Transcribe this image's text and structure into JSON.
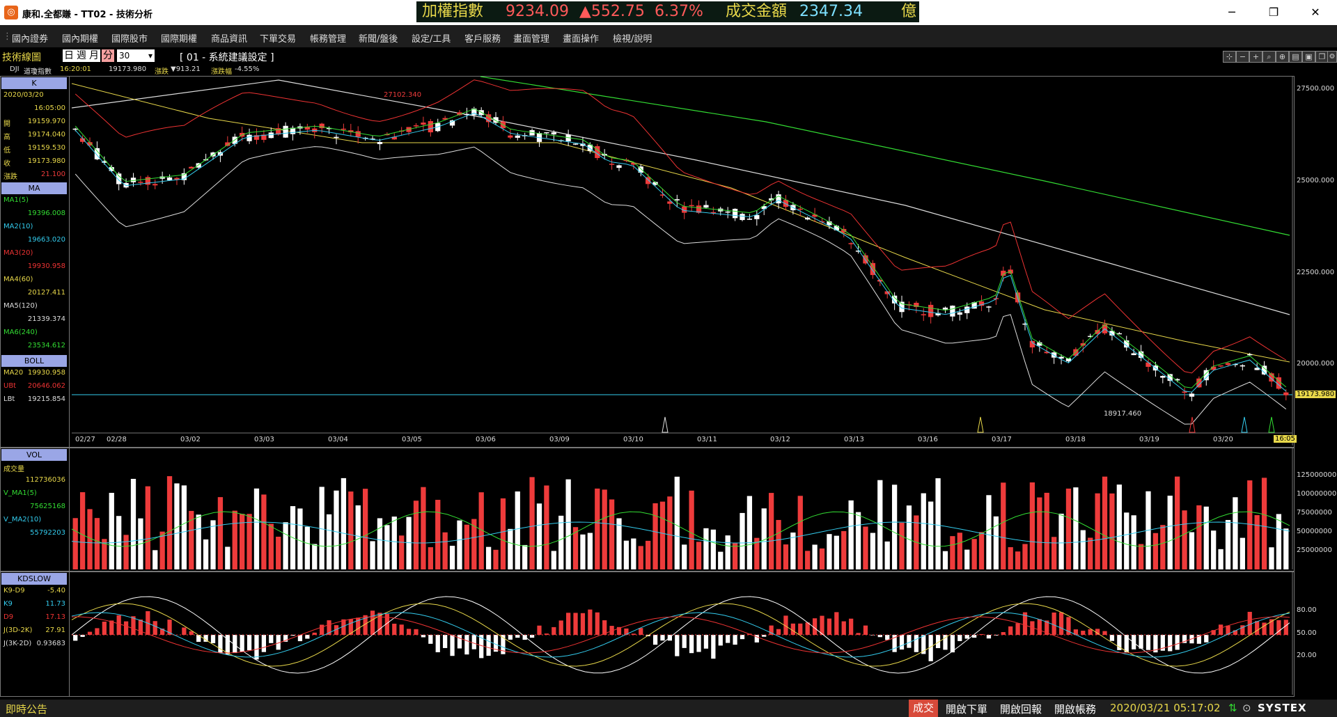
{
  "window": {
    "title": "康和.全都賺 - TT02 - 技術分析",
    "controls": {
      "minimize": "─",
      "restore": "❐",
      "close": "✕"
    }
  },
  "ticker": {
    "index_label": "加權指數",
    "index_value": "9234.09",
    "change": "▲552.75",
    "change_pct": "6.37%",
    "turnover_label": "成交金額",
    "turnover_value": "2347.34",
    "turnover_unit": "億"
  },
  "menu": [
    "國內證券",
    "國內期權",
    "國際股市",
    "國際期權",
    "商品資訊",
    "下單交易",
    "帳務管理",
    "新聞/盤後",
    "設定/工具",
    "客戶服務",
    "畫面管理",
    "畫面操作",
    "檢視/說明"
  ],
  "toolbar": {
    "panel_title": "技術線圖",
    "periods": [
      "日",
      "週",
      "月",
      "分"
    ],
    "active_period": "分",
    "interval_value": "30",
    "setting_label": "[ 01 - 系統建議設定 ]"
  },
  "quote_row": {
    "symbol": "DJI",
    "name": "道瓊指數",
    "time": "16:20:01",
    "price": "19173.980",
    "change_label": "漲跌",
    "change": "▼913.21",
    "change_pct_label": "漲跌幅",
    "change_pct": "-4.55%"
  },
  "side_k": {
    "header": "K",
    "date": "2020/03/20",
    "time": "16:05:00",
    "rows": [
      {
        "label": "開",
        "value": "19159.970"
      },
      {
        "label": "高",
        "value": "19174.040"
      },
      {
        "label": "低",
        "value": "19159.530"
      },
      {
        "label": "收",
        "value": "19173.980"
      },
      {
        "label": "漲跌",
        "value": "21.100"
      }
    ]
  },
  "side_ma": {
    "header": "MA",
    "rows": [
      {
        "label": "MA1(5)",
        "value": "19396.008",
        "color": "#33dd33"
      },
      {
        "label": "MA2(10)",
        "value": "19663.020",
        "color": "#33ccee"
      },
      {
        "label": "MA3(20)",
        "value": "19930.958",
        "color": "#ee3333"
      },
      {
        "label": "MA4(60)",
        "value": "20127.411",
        "color": "#e8d84a"
      },
      {
        "label": "MA5(120)",
        "value": "21339.374",
        "color": "#dddddd"
      },
      {
        "label": "MA6(240)",
        "value": "23534.612",
        "color": "#33dd33"
      }
    ]
  },
  "side_boll": {
    "header": "BOLL",
    "rows": [
      {
        "label": "MA20",
        "value": "19930.958",
        "color": "#e8d84a"
      },
      {
        "label": "UBt",
        "value": "20646.062",
        "color": "#ee3333"
      },
      {
        "label": "LBt",
        "value": "19215.854",
        "color": "#dddddd"
      }
    ]
  },
  "side_vol": {
    "header": "VOL",
    "rows": [
      {
        "label": "成交量",
        "value": "112736036",
        "color": "#e8d84a"
      },
      {
        "label": "V_MA1(5)",
        "value": "75625168",
        "color": "#33dd33"
      },
      {
        "label": "V_MA2(10)",
        "value": "55792203",
        "color": "#33ccee"
      }
    ]
  },
  "side_kd": {
    "header": "KDSLOW",
    "rows": [
      {
        "label": "K9-D9",
        "value": "-5.40",
        "color": "#e8d84a"
      },
      {
        "label": "K9",
        "value": "11.73",
        "color": "#33ccee"
      },
      {
        "label": "D9",
        "value": "17.13",
        "color": "#ee3333"
      },
      {
        "label": "J(3D-2K)",
        "value": "27.91",
        "color": "#e8d84a"
      },
      {
        "label": "J(3K-2D)",
        "value": "0.93683",
        "color": "#dddddd"
      }
    ]
  },
  "price_axis": [
    "27500.000",
    "25000.000",
    "22500.000",
    "20000.000"
  ],
  "price_tag": "19173.980",
  "annotations": {
    "high": "27102.340",
    "low": "18917.460"
  },
  "dates": [
    "02/27",
    "02/28",
    "03/02",
    "03/03",
    "03/04",
    "03/05",
    "03/06",
    "03/09",
    "03/10",
    "03/11",
    "03/12",
    "03/13",
    "03/16",
    "03/17",
    "03/18",
    "03/19",
    "03/20"
  ],
  "time_tag": "16:05",
  "vol_axis": [
    "125000000",
    "100000000",
    "75000000",
    "50000000",
    "25000000"
  ],
  "kd_axis": [
    "80.00",
    "50.00",
    "20.00"
  ],
  "status": {
    "bulletin": "即時公告",
    "trade": "成交",
    "open_order": "開啟下單",
    "open_report": "開啟回報",
    "open_account": "開啟帳務",
    "datetime": "2020/03/21 05:17:02",
    "brand": "SYSTEX"
  },
  "colors": {
    "up": "#ee3b3b",
    "down": "#ffffff",
    "accent": "#9aa6e6",
    "ticker_bg": "#0b1a12"
  }
}
